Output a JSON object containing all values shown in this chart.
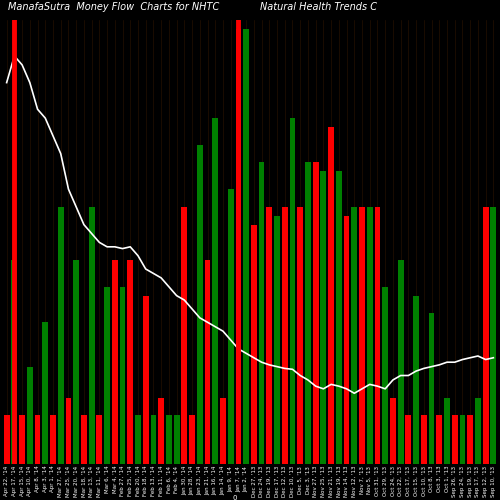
{
  "title": "ManafaSutra  Money Flow  Charts for NHTC",
  "subtitle_clean": "Natural Health Trends C",
  "background_color": "#000000",
  "line_color": "#ffffff",
  "vline_color": "#ff0000",
  "categories": [
    "Apr 22, '14",
    "Apr 17, '14",
    "Apr 15, '14",
    "Apr 10, '14",
    "Apr 8, '14",
    "Apr 3, '14",
    "Apr 1, '14",
    "Mar 27, '14",
    "Mar 25, '14",
    "Mar 20, '14",
    "Mar 18, '14",
    "Mar 13, '14",
    "Mar 11, '14",
    "Mar 6, '14",
    "Mar 4, '14",
    "Feb 27, '14",
    "Feb 25, '14",
    "Feb 20, '14",
    "Feb 18, '14",
    "Feb 13, '14",
    "Feb 11, '14",
    "Feb 6, '14",
    "Feb 4, '14",
    "Jan 30, '14",
    "Jan 28, '14",
    "Jan 23, '14",
    "Jan 21, '14",
    "Jan 16, '14",
    "Jan 14, '14",
    "Jan 9, '14",
    "Jan 7, '14",
    "Jan 2, '14",
    "Dec 27, '13",
    "Dec 24, '13",
    "Dec 19, '13",
    "Dec 17, '13",
    "Dec 12, '13",
    "Dec 10, '13",
    "Dec 5, '13",
    "Dec 3, '13",
    "Nov 27, '13",
    "Nov 25, '13",
    "Nov 21, '13",
    "Nov 19, '13",
    "Nov 14, '13",
    "Nov 12, '13",
    "Nov 7, '13",
    "Nov 5, '13",
    "Oct 31, '13",
    "Oct 29, '13",
    "Oct 24, '13",
    "Oct 22, '13",
    "Oct 17, '13",
    "Oct 15, '13",
    "Oct 10, '13",
    "Oct 8, '13",
    "Oct 3, '13",
    "Oct 1, '13",
    "Sep 26, '13",
    "Sep 24, '13",
    "Sep 19, '13",
    "Sep 17, '13",
    "Sep 12, '13",
    "Sep 10, '13"
  ],
  "bar_heights": [
    55,
    230,
    55,
    110,
    55,
    160,
    55,
    290,
    75,
    230,
    55,
    290,
    55,
    200,
    230,
    200,
    230,
    55,
    190,
    55,
    75,
    55,
    55,
    290,
    55,
    360,
    230,
    390,
    75,
    310,
    490,
    490,
    270,
    340,
    290,
    280,
    290,
    390,
    290,
    340,
    340,
    330,
    380,
    330,
    280,
    290,
    290,
    290,
    290,
    200,
    75,
    230,
    55,
    190,
    55,
    170,
    55,
    75,
    55,
    55,
    55,
    75,
    290,
    290
  ],
  "bar_colors": [
    "red",
    "green",
    "red",
    "green",
    "red",
    "green",
    "red",
    "green",
    "red",
    "green",
    "red",
    "green",
    "red",
    "green",
    "red",
    "green",
    "red",
    "green",
    "red",
    "green",
    "red",
    "green",
    "green",
    "red",
    "red",
    "green",
    "red",
    "green",
    "red",
    "green",
    "red",
    "green",
    "red",
    "green",
    "red",
    "green",
    "red",
    "green",
    "red",
    "green",
    "red",
    "green",
    "red",
    "green",
    "red",
    "green",
    "red",
    "green",
    "red",
    "green",
    "red",
    "green",
    "red",
    "green",
    "red",
    "green",
    "red",
    "green",
    "red",
    "green",
    "red",
    "green",
    "red",
    "green"
  ],
  "line_values": [
    430,
    460,
    450,
    430,
    400,
    390,
    370,
    350,
    310,
    290,
    270,
    260,
    250,
    245,
    245,
    243,
    245,
    235,
    220,
    215,
    210,
    200,
    190,
    185,
    175,
    165,
    160,
    155,
    150,
    140,
    130,
    125,
    120,
    115,
    112,
    110,
    108,
    107,
    100,
    95,
    88,
    85,
    90,
    88,
    85,
    80,
    85,
    90,
    88,
    85,
    95,
    100,
    100,
    105,
    108,
    110,
    112,
    115,
    115,
    118,
    120,
    122,
    118,
    120
  ],
  "vline_indices": [
    1,
    30
  ],
  "ylim": [
    0,
    500
  ],
  "label_fontsize": 4.0,
  "title_fontsize": 7,
  "subtitle_fontsize": 7
}
